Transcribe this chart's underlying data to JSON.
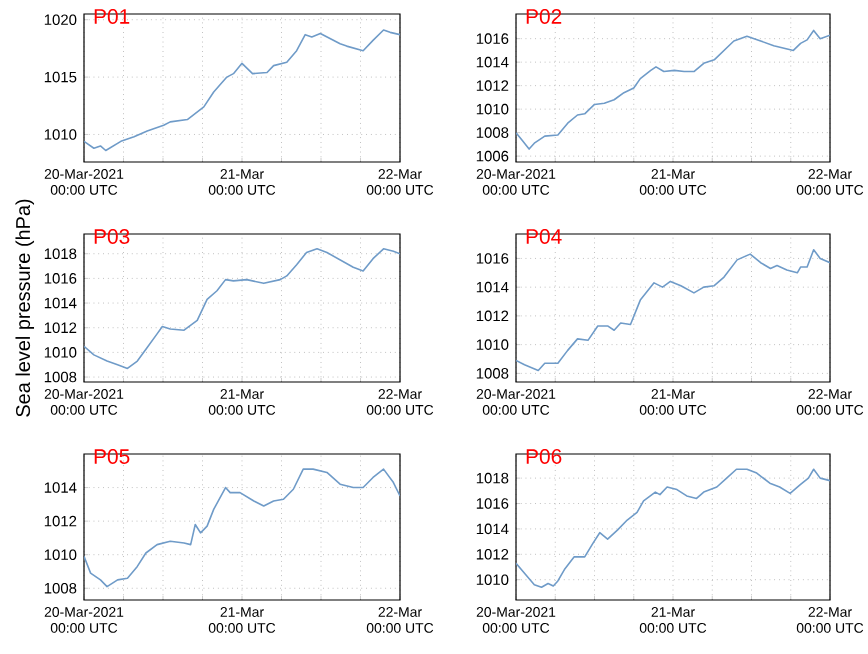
{
  "chart_data": [
    {
      "type": "line",
      "title": "P01",
      "color": "#6f9bc8",
      "grid": true,
      "xlim": [
        "2021-03-20T00:00",
        "2021-03-22T00:00"
      ],
      "ylim": [
        1007.6,
        1020.5
      ],
      "yticks": [
        1010,
        1015,
        1020
      ],
      "xticks": [
        {
          "value": "2021-03-20T00:00",
          "label": "20-Mar-2021\n00:00 UTC"
        },
        {
          "value": "2021-03-20T06:00",
          "label": null
        },
        {
          "value": "2021-03-20T12:00",
          "label": null
        },
        {
          "value": "2021-03-20T18:00",
          "label": null
        },
        {
          "value": "2021-03-21T00:00",
          "label": "21-Mar\n00:00 UTC"
        },
        {
          "value": "2021-03-21T06:00",
          "label": null
        },
        {
          "value": "2021-03-21T12:00",
          "label": null
        },
        {
          "value": "2021-03-21T18:00",
          "label": null
        },
        {
          "value": "2021-03-22T00:00",
          "label": "22-Mar\n00:00 UTC"
        }
      ],
      "x": [
        "2021-03-20T00:00",
        "2021-03-20T01:30",
        "2021-03-20T02:30",
        "2021-03-20T03:18",
        "2021-03-20T05:36",
        "2021-03-20T07:36",
        "2021-03-20T09:36",
        "2021-03-20T12:06",
        "2021-03-20T13:06",
        "2021-03-20T15:42",
        "2021-03-20T18:12",
        "2021-03-20T19:42",
        "2021-03-20T21:42",
        "2021-03-20T22:42",
        "2021-03-21T00:00",
        "2021-03-21T01:36",
        "2021-03-21T03:48",
        "2021-03-21T04:48",
        "2021-03-21T06:48",
        "2021-03-21T08:18",
        "2021-03-21T09:36",
        "2021-03-21T10:36",
        "2021-03-21T11:54",
        "2021-03-21T14:54",
        "2021-03-21T15:54",
        "2021-03-21T18:24",
        "2021-03-21T19:54",
        "2021-03-21T21:30",
        "2021-03-21T22:30",
        "2021-03-22T00:00"
      ],
      "values": [
        1009.4,
        1008.8,
        1009.0,
        1008.6,
        1009.4,
        1009.8,
        1010.3,
        1010.8,
        1011.1,
        1011.3,
        1012.4,
        1013.7,
        1015.0,
        1015.3,
        1016.2,
        1015.3,
        1015.4,
        1016.0,
        1016.3,
        1017.3,
        1018.7,
        1018.5,
        1018.8,
        1017.9,
        1017.7,
        1017.3,
        1018.2,
        1019.1,
        1018.9,
        1018.7
      ]
    },
    {
      "type": "line",
      "title": "P02",
      "color": "#6f9bc8",
      "grid": true,
      "xlim": [
        "2021-03-20T00:00",
        "2021-03-22T00:00"
      ],
      "ylim": [
        1005.5,
        1018.1
      ],
      "yticks": [
        1006,
        1008,
        1010,
        1012,
        1014,
        1016
      ],
      "xticks": [
        {
          "value": "2021-03-20T00:00",
          "label": "20-Mar-2021\n00:00 UTC"
        },
        {
          "value": "2021-03-20T06:00",
          "label": null
        },
        {
          "value": "2021-03-20T12:00",
          "label": null
        },
        {
          "value": "2021-03-20T18:00",
          "label": null
        },
        {
          "value": "2021-03-21T00:00",
          "label": "21-Mar\n00:00 UTC"
        },
        {
          "value": "2021-03-21T06:00",
          "label": null
        },
        {
          "value": "2021-03-21T12:00",
          "label": null
        },
        {
          "value": "2021-03-21T18:00",
          "label": null
        },
        {
          "value": "2021-03-22T00:00",
          "label": "22-Mar\n00:00 UTC"
        }
      ],
      "x": [
        "2021-03-20T00:00",
        "2021-03-20T01:00",
        "2021-03-20T02:00",
        "2021-03-20T02:48",
        "2021-03-20T04:24",
        "2021-03-20T06:24",
        "2021-03-20T07:54",
        "2021-03-20T09:24",
        "2021-03-20T10:30",
        "2021-03-20T12:00",
        "2021-03-20T13:30",
        "2021-03-20T15:00",
        "2021-03-20T16:30",
        "2021-03-20T18:00",
        "2021-03-20T19:00",
        "2021-03-20T20:36",
        "2021-03-20T21:24",
        "2021-03-20T22:36",
        "2021-03-21T00:12",
        "2021-03-21T01:42",
        "2021-03-21T03:12",
        "2021-03-21T04:42",
        "2021-03-21T06:18",
        "2021-03-21T07:48",
        "2021-03-21T09:18",
        "2021-03-21T11:18",
        "2021-03-21T13:24",
        "2021-03-21T15:24",
        "2021-03-21T16:54",
        "2021-03-21T18:24",
        "2021-03-21T19:30",
        "2021-03-21T20:30",
        "2021-03-21T21:30",
        "2021-03-21T22:30",
        "2021-03-22T00:00"
      ],
      "values": [
        1008.0,
        1007.3,
        1006.6,
        1007.1,
        1007.7,
        1007.8,
        1008.8,
        1009.5,
        1009.6,
        1010.4,
        1010.5,
        1010.8,
        1011.4,
        1011.8,
        1012.6,
        1013.3,
        1013.6,
        1013.2,
        1013.3,
        1013.2,
        1013.2,
        1013.9,
        1014.2,
        1015.0,
        1015.8,
        1016.2,
        1015.8,
        1015.4,
        1015.2,
        1015.0,
        1015.6,
        1015.9,
        1016.7,
        1016.0,
        1016.3
      ]
    },
    {
      "type": "line",
      "title": "P03",
      "ylabel": "Sea level pressure (hPa)",
      "color": "#6f9bc8",
      "grid": true,
      "xlim": [
        "2021-03-20T00:00",
        "2021-03-22T00:00"
      ],
      "ylim": [
        1007.6,
        1019.6
      ],
      "yticks": [
        1008,
        1010,
        1012,
        1014,
        1016,
        1018
      ],
      "xticks": [
        {
          "value": "2021-03-20T00:00",
          "label": "20-Mar-2021\n00:00 UTC"
        },
        {
          "value": "2021-03-20T06:00",
          "label": null
        },
        {
          "value": "2021-03-20T12:00",
          "label": null
        },
        {
          "value": "2021-03-20T18:00",
          "label": null
        },
        {
          "value": "2021-03-21T00:00",
          "label": "21-Mar\n00:00 UTC"
        },
        {
          "value": "2021-03-21T06:00",
          "label": null
        },
        {
          "value": "2021-03-21T12:00",
          "label": null
        },
        {
          "value": "2021-03-21T18:00",
          "label": null
        },
        {
          "value": "2021-03-22T00:00",
          "label": "22-Mar\n00:00 UTC"
        }
      ],
      "x": [
        "2021-03-20T00:00",
        "2021-03-20T01:30",
        "2021-03-20T03:30",
        "2021-03-20T05:06",
        "2021-03-20T06:36",
        "2021-03-20T08:06",
        "2021-03-20T09:36",
        "2021-03-20T11:06",
        "2021-03-20T11:54",
        "2021-03-20T13:06",
        "2021-03-20T15:12",
        "2021-03-20T17:12",
        "2021-03-20T18:42",
        "2021-03-20T20:12",
        "2021-03-20T21:30",
        "2021-03-20T22:42",
        "2021-03-21T00:42",
        "2021-03-21T03:18",
        "2021-03-21T05:48",
        "2021-03-21T06:48",
        "2021-03-21T08:18",
        "2021-03-21T09:48",
        "2021-03-21T11:24",
        "2021-03-21T12:54",
        "2021-03-21T14:54",
        "2021-03-21T16:54",
        "2021-03-21T18:24",
        "2021-03-21T19:54",
        "2021-03-21T21:30",
        "2021-03-21T23:00",
        "2021-03-22T00:00"
      ],
      "values": [
        1010.5,
        1009.8,
        1009.3,
        1009.0,
        1008.7,
        1009.3,
        1010.4,
        1011.5,
        1012.1,
        1011.9,
        1011.8,
        1012.6,
        1014.3,
        1015.0,
        1015.9,
        1015.8,
        1015.9,
        1015.6,
        1015.9,
        1016.2,
        1017.1,
        1018.1,
        1018.4,
        1018.1,
        1017.5,
        1016.9,
        1016.6,
        1017.6,
        1018.4,
        1018.2,
        1018.0
      ]
    },
    {
      "type": "line",
      "title": "P04",
      "color": "#6f9bc8",
      "grid": true,
      "xlim": [
        "2021-03-20T00:00",
        "2021-03-22T00:00"
      ],
      "ylim": [
        1007.4,
        1017.7
      ],
      "yticks": [
        1008,
        1010,
        1012,
        1014,
        1016
      ],
      "xticks": [
        {
          "value": "2021-03-20T00:00",
          "label": "20-Mar-2021\n00:00 UTC"
        },
        {
          "value": "2021-03-20T06:00",
          "label": null
        },
        {
          "value": "2021-03-20T12:00",
          "label": null
        },
        {
          "value": "2021-03-20T18:00",
          "label": null
        },
        {
          "value": "2021-03-21T00:00",
          "label": "21-Mar\n00:00 UTC"
        },
        {
          "value": "2021-03-21T06:00",
          "label": null
        },
        {
          "value": "2021-03-21T12:00",
          "label": null
        },
        {
          "value": "2021-03-21T18:00",
          "label": null
        },
        {
          "value": "2021-03-22T00:00",
          "label": "22-Mar\n00:00 UTC"
        }
      ],
      "x": [
        "2021-03-20T00:00",
        "2021-03-20T01:18",
        "2021-03-20T03:24",
        "2021-03-20T04:24",
        "2021-03-20T06:24",
        "2021-03-20T07:54",
        "2021-03-20T09:24",
        "2021-03-20T11:00",
        "2021-03-20T12:30",
        "2021-03-20T14:00",
        "2021-03-20T15:00",
        "2021-03-20T16:00",
        "2021-03-20T17:30",
        "2021-03-20T19:00",
        "2021-03-20T21:06",
        "2021-03-20T22:24",
        "2021-03-20T23:36",
        "2021-03-21T01:12",
        "2021-03-21T03:12",
        "2021-03-21T04:42",
        "2021-03-21T06:18",
        "2021-03-21T07:48",
        "2021-03-21T09:48",
        "2021-03-21T11:48",
        "2021-03-21T13:24",
        "2021-03-21T14:54",
        "2021-03-21T15:54",
        "2021-03-21T17:24",
        "2021-03-21T19:00",
        "2021-03-21T19:30",
        "2021-03-21T20:30",
        "2021-03-21T21:30",
        "2021-03-21T22:30",
        "2021-03-22T00:00"
      ],
      "values": [
        1008.9,
        1008.6,
        1008.2,
        1008.7,
        1008.7,
        1009.6,
        1010.4,
        1010.3,
        1011.3,
        1011.3,
        1011.0,
        1011.5,
        1011.4,
        1013.1,
        1014.3,
        1014.0,
        1014.4,
        1014.1,
        1013.6,
        1014.0,
        1014.1,
        1014.7,
        1015.9,
        1016.3,
        1015.7,
        1015.3,
        1015.5,
        1015.2,
        1015.0,
        1015.4,
        1015.4,
        1016.6,
        1016.0,
        1015.7
      ]
    },
    {
      "type": "line",
      "title": "P05",
      "color": "#6f9bc8",
      "grid": true,
      "xlim": [
        "2021-03-20T00:00",
        "2021-03-22T00:00"
      ],
      "ylim": [
        1007.3,
        1016.0
      ],
      "yticks": [
        1008,
        1010,
        1012,
        1014
      ],
      "xticks": [
        {
          "value": "2021-03-20T00:00",
          "label": "20-Mar-2021\n00:00 UTC"
        },
        {
          "value": "2021-03-20T06:00",
          "label": null
        },
        {
          "value": "2021-03-20T12:00",
          "label": null
        },
        {
          "value": "2021-03-20T18:00",
          "label": null
        },
        {
          "value": "2021-03-21T00:00",
          "label": "21-Mar\n00:00 UTC"
        },
        {
          "value": "2021-03-21T06:00",
          "label": null
        },
        {
          "value": "2021-03-21T12:00",
          "label": null
        },
        {
          "value": "2021-03-21T18:00",
          "label": null
        },
        {
          "value": "2021-03-22T00:00",
          "label": "22-Mar\n00:00 UTC"
        }
      ],
      "x": [
        "2021-03-20T00:00",
        "2021-03-20T01:00",
        "2021-03-20T02:30",
        "2021-03-20T03:30",
        "2021-03-20T05:06",
        "2021-03-20T06:36",
        "2021-03-20T08:06",
        "2021-03-20T09:24",
        "2021-03-20T11:06",
        "2021-03-20T13:06",
        "2021-03-20T15:12",
        "2021-03-20T16:12",
        "2021-03-20T16:54",
        "2021-03-20T17:42",
        "2021-03-20T18:42",
        "2021-03-20T19:42",
        "2021-03-20T21:30",
        "2021-03-20T22:12",
        "2021-03-20T23:42",
        "2021-03-21T01:48",
        "2021-03-21T03:18",
        "2021-03-21T04:48",
        "2021-03-21T06:18",
        "2021-03-21T07:48",
        "2021-03-21T09:18",
        "2021-03-21T10:48",
        "2021-03-21T12:54",
        "2021-03-21T14:54",
        "2021-03-21T16:54",
        "2021-03-21T18:24",
        "2021-03-21T19:54",
        "2021-03-21T21:30",
        "2021-03-21T23:00",
        "2021-03-22T00:00"
      ],
      "values": [
        1009.9,
        1008.9,
        1008.5,
        1008.1,
        1008.5,
        1008.6,
        1009.3,
        1010.1,
        1010.6,
        1010.8,
        1010.7,
        1010.6,
        1011.8,
        1011.3,
        1011.7,
        1012.7,
        1014.0,
        1013.7,
        1013.7,
        1013.2,
        1012.9,
        1013.2,
        1013.3,
        1013.9,
        1015.1,
        1015.1,
        1014.9,
        1014.2,
        1014.0,
        1014.0,
        1014.6,
        1015.1,
        1014.3,
        1013.5
      ]
    },
    {
      "type": "line",
      "title": "P06",
      "color": "#6f9bc8",
      "grid": true,
      "xlim": [
        "2021-03-20T00:00",
        "2021-03-22T00:00"
      ],
      "ylim": [
        1008.4,
        1019.9
      ],
      "yticks": [
        1010,
        1012,
        1014,
        1016,
        1018
      ],
      "xticks": [
        {
          "value": "2021-03-20T00:00",
          "label": "20-Mar-2021\n00:00 UTC"
        },
        {
          "value": "2021-03-20T06:00",
          "label": null
        },
        {
          "value": "2021-03-20T12:00",
          "label": null
        },
        {
          "value": "2021-03-20T18:00",
          "label": null
        },
        {
          "value": "2021-03-21T00:00",
          "label": "21-Mar\n00:00 UTC"
        },
        {
          "value": "2021-03-21T06:00",
          "label": null
        },
        {
          "value": "2021-03-21T12:00",
          "label": null
        },
        {
          "value": "2021-03-21T18:00",
          "label": null
        },
        {
          "value": "2021-03-22T00:00",
          "label": "22-Mar\n00:00 UTC"
        }
      ],
      "x": [
        "2021-03-20T00:00",
        "2021-03-20T01:18",
        "2021-03-20T02:48",
        "2021-03-20T03:54",
        "2021-03-20T04:54",
        "2021-03-20T05:42",
        "2021-03-20T06:24",
        "2021-03-20T07:24",
        "2021-03-20T08:54",
        "2021-03-20T10:30",
        "2021-03-20T11:48",
        "2021-03-20T12:48",
        "2021-03-20T14:00",
        "2021-03-20T15:30",
        "2021-03-20T17:00",
        "2021-03-20T18:30",
        "2021-03-20T19:30",
        "2021-03-20T21:18",
        "2021-03-20T22:00",
        "2021-03-20T23:06",
        "2021-03-21T00:36",
        "2021-03-21T02:06",
        "2021-03-21T03:36",
        "2021-03-21T04:42",
        "2021-03-21T06:42",
        "2021-03-21T08:12",
        "2021-03-21T09:42",
        "2021-03-21T11:18",
        "2021-03-21T12:48",
        "2021-03-21T14:48",
        "2021-03-21T16:18",
        "2021-03-21T17:54",
        "2021-03-21T19:30",
        "2021-03-21T20:42",
        "2021-03-21T21:30",
        "2021-03-21T22:30",
        "2021-03-22T00:00"
      ],
      "values": [
        1011.3,
        1010.5,
        1009.6,
        1009.4,
        1009.7,
        1009.5,
        1009.9,
        1010.8,
        1011.8,
        1011.8,
        1012.9,
        1013.7,
        1013.2,
        1013.9,
        1014.7,
        1015.3,
        1016.2,
        1016.9,
        1016.7,
        1017.3,
        1017.1,
        1016.6,
        1016.4,
        1016.9,
        1017.3,
        1018.0,
        1018.7,
        1018.7,
        1018.4,
        1017.6,
        1017.3,
        1016.8,
        1017.5,
        1018.0,
        1018.7,
        1018.0,
        1017.8
      ]
    }
  ]
}
